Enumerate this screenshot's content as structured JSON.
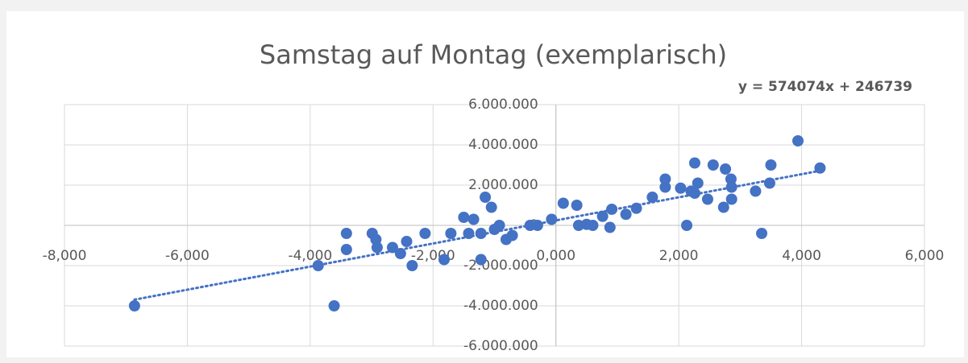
{
  "chart_data": {
    "type": "scatter",
    "title": "Samstag auf Montag (exemplarisch)",
    "x": [
      -6.86,
      -3.61,
      -3.87,
      -3.41,
      -3.41,
      -2.99,
      -2.93,
      -2.91,
      -2.66,
      -2.53,
      -2.43,
      -2.34,
      -2.13,
      -1.82,
      -1.71,
      -1.5,
      -1.34,
      -1.42,
      -1.22,
      -1.22,
      -1.15,
      -1.05,
      -1.0,
      -0.92,
      -0.81,
      -0.71,
      -0.42,
      -0.3,
      -0.07,
      0.12,
      0.34,
      0.37,
      0.5,
      0.6,
      0.76,
      0.88,
      0.91,
      1.14,
      1.31,
      1.57,
      1.78,
      1.78,
      2.03,
      2.13,
      2.2,
      2.26,
      2.31,
      2.26,
      2.47,
      2.56,
      2.73,
      2.76,
      2.85,
      2.86,
      2.86,
      3.25,
      3.35,
      3.48,
      3.5,
      3.94,
      4.3
    ],
    "values": [
      -4000000,
      -4000000,
      -2000000,
      -400000,
      -1200000,
      -400000,
      -700000,
      -1100000,
      -1100000,
      -1400000,
      -800000,
      -2000000,
      -400000,
      -1700000,
      -400000,
      400000,
      300000,
      -400000,
      -400000,
      -1700000,
      1400000,
      900000,
      -200000,
      0,
      -700000,
      -500000,
      0,
      0,
      300000,
      1100000,
      1000000,
      0,
      50000,
      0,
      450000,
      -100000,
      800000,
      550000,
      850000,
      1400000,
      2300000,
      1900000,
      1850000,
      0,
      1700000,
      3100000,
      2100000,
      1600000,
      1300000,
      3000000,
      900000,
      2800000,
      2300000,
      1900000,
      1300000,
      1700000,
      -400000,
      2100000,
      3000000,
      4200000,
      2850000
    ],
    "color": "#4472c4",
    "xlim": [
      -8,
      6
    ],
    "xticks": [
      {
        "value": -8,
        "label": "-8,000"
      },
      {
        "value": -6,
        "label": "-6,000"
      },
      {
        "value": -4,
        "label": "-4,000"
      },
      {
        "value": -2,
        "label": "-2,000"
      },
      {
        "value": 0,
        "label": "0,000"
      },
      {
        "value": 2,
        "label": "2,000"
      },
      {
        "value": 4,
        "label": "4,000"
      },
      {
        "value": 6,
        "label": "6,000"
      }
    ],
    "ylim": [
      -6000000,
      6000000
    ],
    "yticks": [
      {
        "value": -6000000,
        "label": "-6.000.000"
      },
      {
        "value": -4000000,
        "label": "-4.000.000"
      },
      {
        "value": -2000000,
        "label": "-2.000.000"
      },
      {
        "value": 0,
        "label": "0"
      },
      {
        "value": 2000000,
        "label": "2.000.000"
      },
      {
        "value": 4000000,
        "label": "4.000.000"
      },
      {
        "value": 6000000,
        "label": "6.000.000"
      }
    ],
    "grid": true,
    "trendline": {
      "slope": 574074,
      "intercept": 246739,
      "label": "y = 574074x + 246739"
    }
  }
}
